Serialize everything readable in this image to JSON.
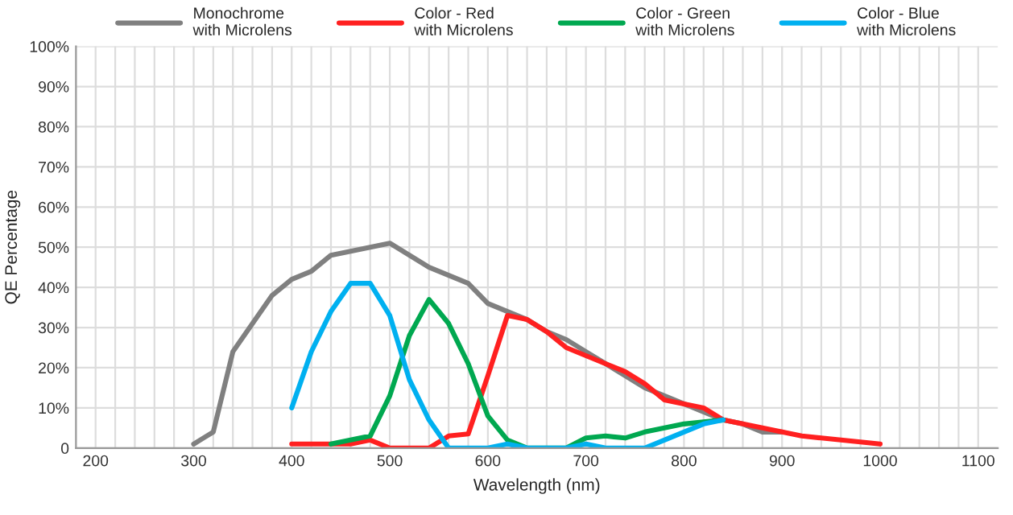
{
  "chart_data": {
    "type": "line",
    "xlabel": "Wavelength (nm)",
    "ylabel": "QE Percentage",
    "xlim": [
      180,
      1120
    ],
    "ylim": [
      0,
      100
    ],
    "xticks": [
      {
        "value": 200,
        "label": "200"
      },
      {
        "value": 220,
        "label": null
      },
      {
        "value": 240,
        "label": null
      },
      {
        "value": 260,
        "label": null
      },
      {
        "value": 280,
        "label": null
      },
      {
        "value": 300,
        "label": "300"
      },
      {
        "value": 320,
        "label": null
      },
      {
        "value": 340,
        "label": null
      },
      {
        "value": 360,
        "label": null
      },
      {
        "value": 380,
        "label": null
      },
      {
        "value": 400,
        "label": "400"
      },
      {
        "value": 420,
        "label": null
      },
      {
        "value": 440,
        "label": null
      },
      {
        "value": 460,
        "label": null
      },
      {
        "value": 480,
        "label": null
      },
      {
        "value": 500,
        "label": "500"
      },
      {
        "value": 520,
        "label": null
      },
      {
        "value": 540,
        "label": null
      },
      {
        "value": 560,
        "label": null
      },
      {
        "value": 580,
        "label": null
      },
      {
        "value": 600,
        "label": "600"
      },
      {
        "value": 620,
        "label": null
      },
      {
        "value": 640,
        "label": null
      },
      {
        "value": 660,
        "label": null
      },
      {
        "value": 680,
        "label": null
      },
      {
        "value": 700,
        "label": "700"
      },
      {
        "value": 720,
        "label": null
      },
      {
        "value": 740,
        "label": null
      },
      {
        "value": 760,
        "label": null
      },
      {
        "value": 780,
        "label": null
      },
      {
        "value": 800,
        "label": "800"
      },
      {
        "value": 820,
        "label": null
      },
      {
        "value": 840,
        "label": null
      },
      {
        "value": 860,
        "label": null
      },
      {
        "value": 880,
        "label": null
      },
      {
        "value": 900,
        "label": "900"
      },
      {
        "value": 920,
        "label": null
      },
      {
        "value": 940,
        "label": null
      },
      {
        "value": 960,
        "label": null
      },
      {
        "value": 980,
        "label": null
      },
      {
        "value": 1000,
        "label": "1000"
      },
      {
        "value": 1020,
        "label": null
      },
      {
        "value": 1040,
        "label": null
      },
      {
        "value": 1060,
        "label": null
      },
      {
        "value": 1080,
        "label": null
      },
      {
        "value": 1100,
        "label": "1100"
      }
    ],
    "yticks": [
      {
        "value": 0,
        "label": "0"
      },
      {
        "value": 10,
        "label": "10%"
      },
      {
        "value": 20,
        "label": "20%"
      },
      {
        "value": 30,
        "label": "30%"
      },
      {
        "value": 40,
        "label": "40%"
      },
      {
        "value": 50,
        "label": "50%"
      },
      {
        "value": 60,
        "label": "60%"
      },
      {
        "value": 70,
        "label": "70%"
      },
      {
        "value": 80,
        "label": "80%"
      },
      {
        "value": 90,
        "label": "90%"
      },
      {
        "value": 100,
        "label": "100%"
      }
    ],
    "grid": true,
    "legend": "top",
    "marker": "none",
    "line_style": "solid",
    "series": [
      {
        "name": "Monochrome\nwith Microlens",
        "color": "#808080",
        "x": [
          300,
          320,
          340,
          360,
          380,
          400,
          420,
          440,
          460,
          480,
          500,
          520,
          540,
          560,
          580,
          600,
          620,
          640,
          660,
          680,
          700,
          720,
          740,
          760,
          780,
          800,
          820,
          840,
          860,
          880,
          900
        ],
        "values": [
          1,
          4,
          24,
          31,
          38,
          42,
          44,
          48,
          49,
          50,
          51,
          48,
          45,
          43,
          41,
          36,
          34,
          32,
          29,
          27,
          24,
          21,
          18,
          15,
          13,
          11,
          9,
          7,
          6,
          4,
          4
        ]
      },
      {
        "name": "Color - Red\nwith Microlens",
        "color": "#ff2020",
        "x": [
          400,
          420,
          440,
          460,
          480,
          500,
          520,
          540,
          560,
          580,
          600,
          620,
          640,
          660,
          680,
          700,
          720,
          740,
          760,
          780,
          800,
          820,
          840,
          860,
          880,
          900,
          920,
          940,
          960,
          980,
          1000
        ],
        "values": [
          1,
          1,
          1,
          1,
          2,
          0,
          0,
          0,
          3,
          3.5,
          18,
          33,
          32,
          29,
          25,
          23,
          21,
          19,
          16,
          12,
          11,
          10,
          7,
          6,
          5,
          4,
          3,
          2.5,
          2,
          1.5,
          1
        ]
      },
      {
        "name": "Color - Green\nwith Microlens",
        "color": "#00a850",
        "x": [
          440,
          460,
          480,
          500,
          520,
          540,
          560,
          580,
          600,
          620,
          640,
          660,
          680,
          700,
          720,
          740,
          760,
          780,
          800,
          820,
          840
        ],
        "values": [
          1,
          2,
          3,
          13,
          28,
          37,
          31,
          21,
          8,
          2,
          0,
          0,
          0,
          2.5,
          3,
          2.5,
          4,
          5,
          6,
          6.5,
          7
        ]
      },
      {
        "name": "Color - Blue\nwith Microlens",
        "color": "#00b0f0",
        "x": [
          400,
          420,
          440,
          460,
          480,
          500,
          520,
          540,
          560,
          580,
          600,
          620,
          640,
          660,
          680,
          700,
          720,
          740,
          760,
          780,
          800,
          820,
          840
        ],
        "values": [
          10,
          24,
          34,
          41,
          41,
          33,
          17,
          7,
          0,
          0,
          0,
          1,
          0,
          0,
          0,
          1,
          0,
          0,
          0,
          2,
          4,
          6,
          7
        ]
      }
    ]
  }
}
